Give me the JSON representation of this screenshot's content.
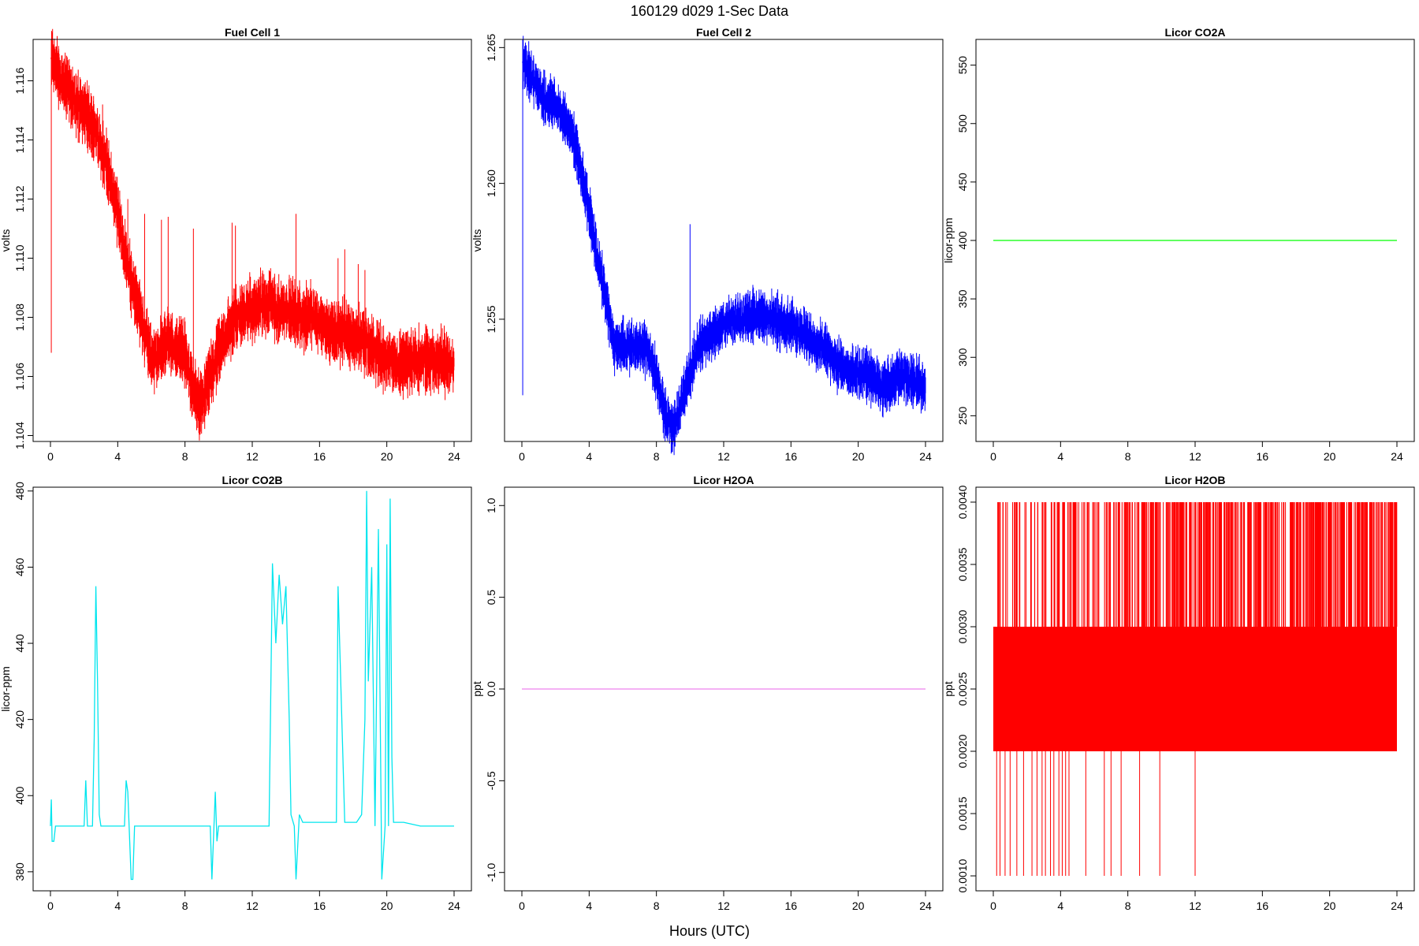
{
  "figure": {
    "title": "160129   d029   1-Sec Data",
    "xlabel": "Hours (UTC)"
  },
  "chart_data": [
    {
      "type": "line",
      "title": "Fuel Cell 1",
      "ylabel": "volts",
      "color": "#ff0000",
      "xlim": [
        0,
        24
      ],
      "ylim": [
        1.1038,
        1.1174
      ],
      "xticks": [
        "0",
        "4",
        "8",
        "12",
        "16",
        "20",
        "24"
      ],
      "yticks": [
        "1.104",
        "1.106",
        "1.108",
        "1.110",
        "1.112",
        "1.114",
        "1.116"
      ],
      "ytick_values": [
        1.104,
        1.106,
        1.108,
        1.11,
        1.112,
        1.114,
        1.116
      ],
      "band": 0.0009,
      "series": [
        {
          "x": [
            0,
            0.05,
            0.5,
            1,
            1.5,
            2,
            2.5,
            3,
            3.5,
            4,
            4.5,
            5,
            5.5,
            6,
            6.5,
            7,
            7.5,
            8,
            8.5,
            9,
            9.5,
            10,
            10.5,
            11,
            11.5,
            12,
            12.5,
            13,
            13.5,
            14,
            14.5,
            15,
            15.5,
            16,
            16.5,
            17,
            17.5,
            18,
            18.5,
            19,
            19.5,
            20,
            20.5,
            21,
            21.5,
            22,
            22.5,
            23,
            23.5,
            24
          ],
          "values": [
            1.1068,
            1.1168,
            1.1162,
            1.1158,
            1.1152,
            1.115,
            1.1145,
            1.1138,
            1.1128,
            1.1115,
            1.11,
            1.1088,
            1.1078,
            1.1065,
            1.1068,
            1.1072,
            1.107,
            1.1068,
            1.1055,
            1.105,
            1.106,
            1.1068,
            1.1075,
            1.108,
            1.1082,
            1.1083,
            1.1085,
            1.1085,
            1.1083,
            1.1083,
            1.1082,
            1.108,
            1.108,
            1.1078,
            1.1076,
            1.1076,
            1.1075,
            1.1074,
            1.1073,
            1.107,
            1.1068,
            1.1066,
            1.1064,
            1.1065,
            1.1065,
            1.1066,
            1.1066,
            1.1066,
            1.1065,
            1.1064
          ],
          "spikes": [
            [
              0.05,
              1.1068,
              1.1174
            ],
            [
              3.1,
              1.1138,
              1.1152
            ],
            [
              4.6,
              1.11,
              1.112
            ],
            [
              5.6,
              1.108,
              1.1115
            ],
            [
              6.6,
              1.107,
              1.1113
            ],
            [
              7.0,
              1.1072,
              1.1114
            ],
            [
              8.5,
              1.106,
              1.111
            ],
            [
              10.8,
              1.1075,
              1.1112
            ],
            [
              11.0,
              1.1078,
              1.1111
            ],
            [
              14.6,
              1.108,
              1.1115
            ],
            [
              17.1,
              1.1078,
              1.11
            ],
            [
              17.5,
              1.1078,
              1.1103
            ],
            [
              18.3,
              1.1076,
              1.1098
            ],
            [
              18.7,
              1.1075,
              1.1096
            ]
          ]
        }
      ]
    },
    {
      "type": "line",
      "title": "Fuel Cell 2",
      "ylabel": "volts",
      "color": "#0000ff",
      "xlim": [
        0,
        24
      ],
      "ylim": [
        1.2505,
        1.2653
      ],
      "xticks": [
        "0",
        "4",
        "8",
        "12",
        "16",
        "20",
        "24"
      ],
      "yticks": [
        "1.255",
        "1.260",
        "1.265"
      ],
      "ytick_values": [
        1.255,
        1.26,
        1.265
      ],
      "band": 0.0008,
      "series": [
        {
          "x": [
            0,
            0.05,
            0.5,
            1,
            1.5,
            2,
            2.5,
            3,
            3.5,
            4,
            4.5,
            5,
            5.5,
            6,
            6.5,
            7,
            7.5,
            8,
            8.5,
            9,
            9.5,
            10,
            10.5,
            11,
            11.5,
            12,
            12.5,
            13,
            13.5,
            14,
            14.5,
            15,
            15.5,
            16,
            16.5,
            17,
            17.5,
            18,
            18.5,
            19,
            19.5,
            20,
            20.5,
            21,
            21.5,
            22,
            22.5,
            23,
            23.5,
            24
          ],
          "values": [
            1.2522,
            1.2645,
            1.264,
            1.2634,
            1.263,
            1.2628,
            1.2624,
            1.2618,
            1.2605,
            1.259,
            1.2572,
            1.2558,
            1.254,
            1.254,
            1.254,
            1.254,
            1.2538,
            1.253,
            1.2515,
            1.251,
            1.252,
            1.253,
            1.254,
            1.2543,
            1.2545,
            1.2548,
            1.255,
            1.255,
            1.2552,
            1.2552,
            1.255,
            1.255,
            1.2548,
            1.2548,
            1.2545,
            1.2543,
            1.254,
            1.254,
            1.2535,
            1.2532,
            1.253,
            1.253,
            1.253,
            1.2527,
            1.2525,
            1.2527,
            1.253,
            1.2528,
            1.2527,
            1.2525
          ],
          "spikes": [
            [
              0.05,
              1.2522,
              1.2653
            ],
            [
              10.0,
              1.253,
              1.2585
            ]
          ]
        }
      ]
    },
    {
      "type": "line",
      "title": "Licor CO2A",
      "ylabel": "licor-ppm",
      "color": "#00ff00",
      "xlim": [
        0,
        24
      ],
      "ylim": [
        228,
        572
      ],
      "xticks": [
        "0",
        "4",
        "8",
        "12",
        "16",
        "20",
        "24"
      ],
      "yticks": [
        "250",
        "300",
        "350",
        "400",
        "450",
        "500",
        "550"
      ],
      "ytick_values": [
        250,
        300,
        350,
        400,
        450,
        500,
        550
      ],
      "series": [
        {
          "x": [
            0,
            24
          ],
          "values": [
            400,
            400
          ]
        }
      ]
    },
    {
      "type": "line",
      "title": "Licor CO2B",
      "ylabel": "licor-ppm",
      "color": "#00e5ee",
      "xlim": [
        0,
        24
      ],
      "ylim": [
        375,
        481
      ],
      "xticks": [
        "0",
        "4",
        "8",
        "12",
        "16",
        "20",
        "24"
      ],
      "yticks": [
        "380",
        "400",
        "420",
        "440",
        "460",
        "480"
      ],
      "ytick_values": [
        380,
        400,
        420,
        440,
        460,
        480
      ],
      "series": [
        {
          "x": [
            0,
            0.05,
            0.1,
            0.2,
            0.3,
            0.35,
            2.0,
            2.1,
            2.2,
            2.5,
            2.6,
            2.7,
            2.8,
            2.9,
            3.0,
            4.4,
            4.5,
            4.6,
            4.8,
            4.9,
            5.0,
            9.5,
            9.6,
            9.8,
            9.9,
            10.0,
            13.0,
            13.2,
            13.4,
            13.6,
            13.8,
            14.0,
            14.2,
            14.3,
            14.5,
            14.6,
            14.8,
            15.0,
            15.1,
            17.0,
            17.1,
            17.5,
            18.2,
            18.5,
            18.7,
            18.8,
            18.9,
            19.1,
            19.3,
            19.5,
            19.7,
            19.9,
            20.0,
            20.1,
            20.2,
            20.3,
            20.4,
            20.5,
            21,
            22,
            23,
            24
          ],
          "values": [
            392,
            399,
            388,
            388,
            392,
            392,
            392,
            404,
            392,
            392,
            415,
            455,
            430,
            395,
            392,
            392,
            404,
            401,
            378,
            378,
            392,
            392,
            378,
            401,
            388,
            392,
            392,
            461,
            440,
            458,
            445,
            455,
            420,
            395,
            392,
            378,
            395,
            393,
            393,
            393,
            455,
            393,
            393,
            395,
            420,
            480,
            430,
            460,
            392,
            470,
            378,
            392,
            466,
            392,
            478,
            410,
            393,
            393,
            393,
            392,
            392,
            392
          ]
        }
      ]
    },
    {
      "type": "line",
      "title": "Licor H2OA",
      "ylabel": "ppt",
      "color": "#ee82ee",
      "xlim": [
        0,
        24
      ],
      "ylim": [
        -1.1,
        1.1
      ],
      "xticks": [
        "0",
        "4",
        "8",
        "12",
        "16",
        "20",
        "24"
      ],
      "yticks": [
        "-1.0",
        "-0.5",
        "0.0",
        "0.5",
        "1.0"
      ],
      "ytick_values": [
        -1.0,
        -0.5,
        0.0,
        0.5,
        1.0
      ],
      "series": [
        {
          "x": [
            0,
            24
          ],
          "values": [
            0,
            0
          ]
        }
      ]
    },
    {
      "type": "line",
      "title": "Licor H2OB",
      "ylabel": "ppt",
      "color": "#ff0000",
      "xlim": [
        0,
        24
      ],
      "ylim": [
        0.00088,
        0.00412
      ],
      "xticks": [
        "0",
        "4",
        "8",
        "12",
        "16",
        "20",
        "24"
      ],
      "yticks": [
        "0.0010",
        "0.0015",
        "0.0020",
        "0.0025",
        "0.0030",
        "0.0035",
        "0.0040"
      ],
      "ytick_values": [
        0.001,
        0.0015,
        0.002,
        0.0025,
        0.003,
        0.0035,
        0.004
      ],
      "band_range": [
        0.002,
        0.003
      ],
      "top_spike": 0.004,
      "low_spike": 0.001,
      "low_spike_x": [
        0.2,
        0.4,
        0.7,
        1.0,
        1.4,
        1.8,
        2.3,
        2.6,
        2.9,
        3.1,
        3.4,
        3.6,
        3.9,
        4.1,
        4.3,
        4.5,
        5.5,
        6.6,
        7.0,
        7.6,
        8.7,
        9.9,
        12.0
      ],
      "top_spike_density": [
        0,
        0.25,
        0.35,
        0.5,
        0.65,
        0.75,
        0.85,
        1.0
      ]
    }
  ]
}
